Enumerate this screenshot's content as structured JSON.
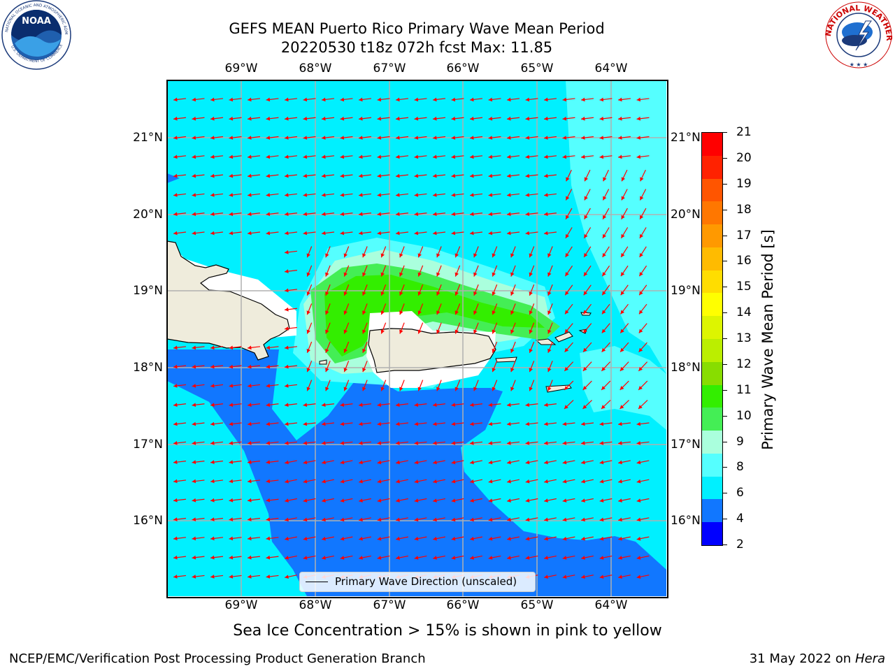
{
  "title": {
    "line1": "GEFS MEAN Puerto Rico Primary Wave Mean Period",
    "line2": "20220530 t18z 072h fcst   Max: 11.85"
  },
  "map": {
    "lon_labels": [
      "69°W",
      "68°W",
      "67°W",
      "66°W",
      "65°W",
      "64°W"
    ],
    "lat_labels": [
      "21°N",
      "20°N",
      "19°N",
      "18°N",
      "17°N",
      "16°N"
    ],
    "lon_range": [
      -70.0,
      -63.25
    ],
    "lat_range": [
      15.0,
      21.75
    ],
    "legend_label": "Primary Wave Direction (unscaled)"
  },
  "colorbar": {
    "title": "Primary Wave Mean Period [s]",
    "ticks": [
      "21",
      "20",
      "19",
      "18",
      "17",
      "16",
      "15",
      "14",
      "13",
      "12",
      "11",
      "10",
      "9",
      "8",
      "6",
      "4",
      "2"
    ],
    "colors": [
      "#ff0000",
      "#ff2200",
      "#ff5500",
      "#ff7700",
      "#ff9900",
      "#ffbb00",
      "#ffdd00",
      "#ffff00",
      "#ddf500",
      "#bbee00",
      "#88dd00",
      "#33ee00",
      "#44ee55",
      "#aaffdd",
      "#55ffff",
      "#00f0ff",
      "#1177ff",
      "#0000ff"
    ]
  },
  "notes": {
    "sea_ice": "Sea Ice Concentration > 15% is shown in pink to yellow"
  },
  "footer": {
    "left": "NCEP/EMC/Verification Post Processing Product Generation Branch",
    "date": "31 May 2022 on",
    "machine": "Hera"
  },
  "logos": {
    "noaa": "NOAA",
    "nws": "NATIONAL WEATHER SERVICE"
  }
}
